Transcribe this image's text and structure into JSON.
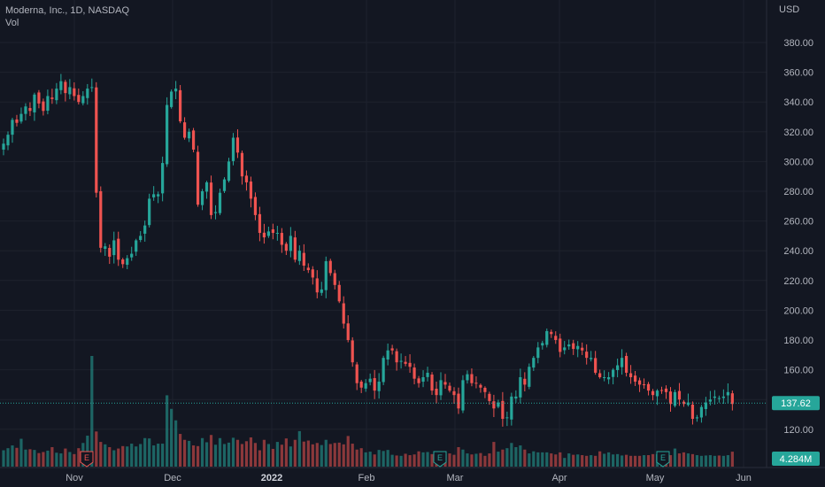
{
  "header": {
    "symbol_line": "Moderna, Inc., 1D, NASDAQ",
    "volume_label": "Vol",
    "currency": "USD"
  },
  "colors": {
    "background": "#131722",
    "grid": "#1e222d",
    "up": "#26a69a",
    "down": "#ef5350",
    "text": "#b2b5be",
    "last_price_line": "#26a69a"
  },
  "chart_data": {
    "type": "candlestick",
    "price_axis": {
      "ticks": [
        "380.00",
        "360.00",
        "340.00",
        "320.00",
        "300.00",
        "280.00",
        "260.00",
        "240.00",
        "220.00",
        "200.00",
        "180.00",
        "160.00",
        "140.00",
        "120.00"
      ],
      "range": [
        110,
        390
      ]
    },
    "time_axis": {
      "labels": [
        "Nov",
        "Dec",
        "2022",
        "Feb",
        "Mar",
        "Apr",
        "May",
        "Jun"
      ]
    },
    "last_price": "137.62",
    "last_volume": "4.284M",
    "earnings_markers": [
      "E",
      "E",
      "E"
    ],
    "closes": [
      312,
      318,
      328,
      326,
      332,
      337,
      334,
      345,
      339,
      334,
      344,
      342,
      349,
      354,
      346,
      350,
      344,
      340,
      344,
      349,
      350,
      279,
      242,
      243,
      236,
      247,
      234,
      231,
      235,
      238,
      247,
      250,
      257,
      275,
      278,
      278,
      299,
      338,
      347,
      349,
      327,
      316,
      320,
      308,
      271,
      280,
      286,
      264,
      266,
      279,
      288,
      300,
      316,
      306,
      290,
      286,
      275,
      264,
      252,
      249,
      253,
      252,
      252,
      244,
      240,
      250,
      234,
      240,
      230,
      227,
      222,
      212,
      214,
      233,
      225,
      217,
      206,
      191,
      180,
      165,
      151,
      148,
      151,
      154,
      146,
      152,
      168,
      173,
      173,
      165,
      166,
      164,
      162,
      154,
      151,
      155,
      158,
      146,
      143,
      153,
      150,
      146,
      143,
      134,
      153,
      157,
      151,
      151,
      148,
      145,
      139,
      134,
      138,
      127,
      128,
      142,
      142,
      155,
      150,
      162,
      168,
      175,
      178,
      186,
      184,
      180,
      172,
      175,
      177,
      174,
      176,
      173,
      168,
      168,
      158,
      155,
      155,
      155,
      160,
      163,
      168,
      158,
      155,
      152,
      150,
      150,
      146,
      143,
      146,
      146,
      145,
      137,
      145,
      140,
      137,
      138,
      127,
      128,
      135,
      138,
      140,
      142,
      141,
      142,
      145,
      137
    ],
    "volumes_million": [
      4.7,
      5.3,
      6.1,
      5.4,
      8,
      4.9,
      5,
      4.8,
      3.9,
      4.2,
      4.6,
      5.6,
      4,
      3.8,
      5.2,
      4.2,
      3.6,
      5.3,
      6.8,
      8.9,
      31.8,
      10.1,
      7.1,
      6.4,
      5.6,
      4.7,
      5.2,
      5.9,
      5.8,
      6.6,
      5.8,
      6.5,
      8.2,
      8.1,
      6.1,
      6.6,
      6.6,
      20.5,
      16.6,
      13.3,
      9.4,
      7.7,
      7.4,
      6.1,
      5.9,
      8.2,
      7,
      9.1,
      6.3,
      8.2,
      6.5,
      6.9,
      8.3,
      7.7,
      6.5,
      7.3,
      8.4,
      6.8,
      4.7,
      7.7,
      6.5,
      5.1,
      7.1,
      6.3,
      8.1,
      5.8,
      7.7,
      10.2,
      7.2,
      7.5,
      6.4,
      6.8,
      6.2,
      7.7,
      6.5,
      6.8,
      6.9,
      6.4,
      8.8,
      6.6,
      4.9,
      5.3,
      4.1,
      4.3,
      3.5,
      4.8,
      4.5,
      4.8,
      3.4,
      3.2,
      3.1,
      3.7,
      3.3,
      3.5,
      4.4,
      4.1,
      4.2,
      3.6,
      3.5,
      3.5,
      3.6,
      3.8,
      3.4,
      5.6,
      4.9,
      3.8,
      3.5,
      3.7,
      3.9,
      3.1,
      3.8,
      7.1,
      4.3,
      4.9,
      5.3,
      6.8,
      5.6,
      6.1,
      4.9,
      3.8,
      4.4,
      4.1,
      4.1,
      4.1,
      3.8,
      3.5,
      4.1,
      2.5,
      3.8,
      3.4,
      3.5,
      3.3,
      3.1,
      3.3,
      3.1,
      4.4,
      3.7,
      4.1,
      3.5,
      3.6,
      3.2,
      3.4,
      3.1,
      3.1,
      3.1,
      3.3,
      3.3,
      3.6,
      3.6,
      3.8,
      3.2,
      3.3,
      5.2,
      3.8,
      4.1,
      3.8,
      3.6,
      3.3,
      3.1,
      3.2,
      3.3,
      3.1,
      3.2,
      3.1,
      3.3,
      4.3
    ]
  }
}
